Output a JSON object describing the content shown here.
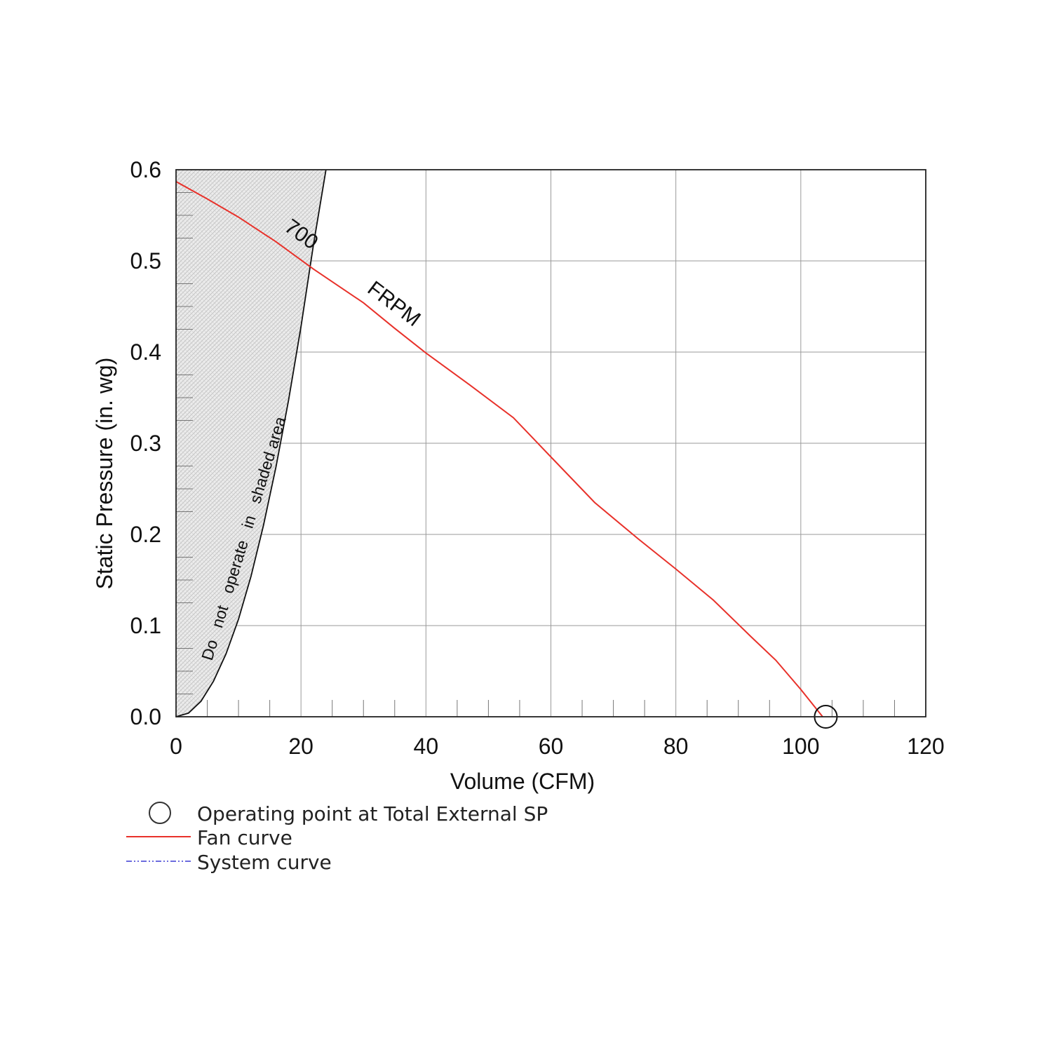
{
  "chart_data": {
    "type": "line",
    "xlabel": "Volume (CFM)",
    "ylabel": "Static Pressure (in. wg)",
    "xlim": [
      0,
      120
    ],
    "ylim": [
      0.0,
      0.6
    ],
    "x_ticks": [
      "0",
      "20",
      "40",
      "60",
      "80",
      "100",
      "120"
    ],
    "y_ticks": [
      "0.0",
      "0.1",
      "0.2",
      "0.3",
      "0.4",
      "0.5",
      "0.6"
    ],
    "grid": true,
    "legend_position": "bottom-left",
    "series": [
      {
        "name": "Fan curve",
        "color": "#e8312a",
        "points": [
          [
            0,
            0.587
          ],
          [
            5,
            0.568
          ],
          [
            10,
            0.548
          ],
          [
            16,
            0.521
          ],
          [
            22,
            0.491
          ],
          [
            30,
            0.454
          ],
          [
            35,
            0.426
          ],
          [
            40,
            0.399
          ],
          [
            47,
            0.364
          ],
          [
            54,
            0.328
          ],
          [
            60,
            0.285
          ],
          [
            67,
            0.235
          ],
          [
            74,
            0.195
          ],
          [
            80,
            0.162
          ],
          [
            86,
            0.128
          ],
          [
            92,
            0.088
          ],
          [
            96,
            0.062
          ],
          [
            100,
            0.03
          ],
          [
            103.5,
            0.0
          ]
        ]
      },
      {
        "name": "System curve",
        "color": "#3b3bd4",
        "points": []
      }
    ],
    "operating_point": {
      "name": "Operating point at Total External SP",
      "x": 104,
      "y": 0.0
    },
    "shaded_region": {
      "label": "Do   not   operate   in   shaded area",
      "boundary": [
        [
          0,
          0.0
        ],
        [
          2,
          0.004
        ],
        [
          4,
          0.017
        ],
        [
          6,
          0.039
        ],
        [
          8,
          0.069
        ],
        [
          10,
          0.107
        ],
        [
          12,
          0.154
        ],
        [
          14,
          0.21
        ],
        [
          16,
          0.274
        ],
        [
          18,
          0.347
        ],
        [
          20,
          0.428
        ],
        [
          22,
          0.518
        ],
        [
          24,
          0.6
        ]
      ]
    },
    "annotations": [
      {
        "text": "700",
        "x": 20,
        "y": 0.52
      },
      {
        "text": "FRPM",
        "x": 39,
        "y": 0.45
      }
    ]
  }
}
